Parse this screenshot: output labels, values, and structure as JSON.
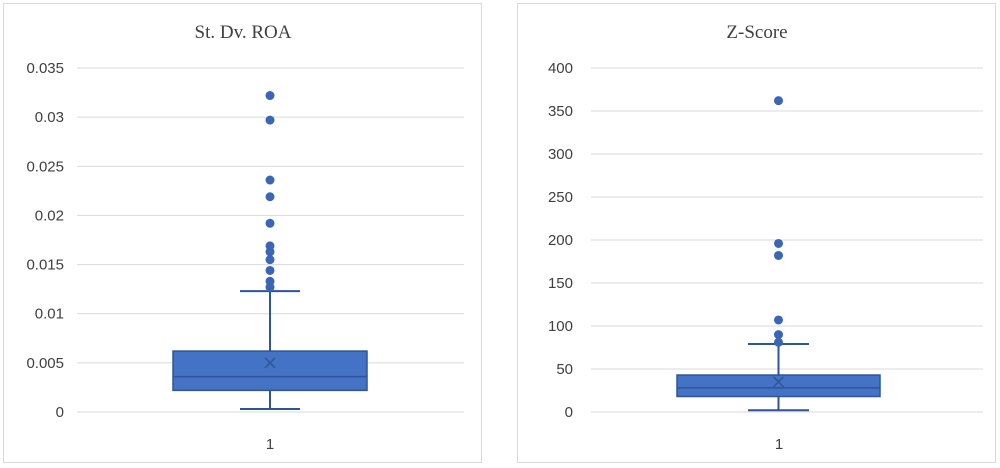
{
  "chart_data": [
    {
      "type": "boxplot",
      "title": "St. Dv. ROA",
      "categories": [
        "1"
      ],
      "ylim": [
        0,
        0.035
      ],
      "yticks": [
        "0",
        "0.005",
        "0.01",
        "0.015",
        "0.02",
        "0.025",
        "0.03",
        "0.035"
      ],
      "grid": true,
      "box": {
        "min": 0.0003,
        "q1": 0.0022,
        "median": 0.0036,
        "q3": 0.0062,
        "max": 0.0123,
        "mean": 0.005
      },
      "outliers": [
        0.0127,
        0.0133,
        0.0144,
        0.0155,
        0.0163,
        0.0169,
        0.0192,
        0.0219,
        0.0236,
        0.0297,
        0.0322
      ],
      "colors": {
        "fill": "#4472c4",
        "edge": "#2f5597",
        "point": "#3a66b5"
      }
    },
    {
      "type": "boxplot",
      "title": "Z-Score",
      "categories": [
        "1"
      ],
      "ylim": [
        0,
        400
      ],
      "yticks": [
        "0",
        "50",
        "100",
        "150",
        "200",
        "250",
        "300",
        "350",
        "400"
      ],
      "grid": true,
      "box": {
        "min": 2,
        "q1": 18,
        "median": 28,
        "q3": 43,
        "max": 79,
        "mean": 35
      },
      "outliers": [
        81,
        90,
        107,
        182,
        196,
        362
      ],
      "colors": {
        "fill": "#4472c4",
        "edge": "#2f5597",
        "point": "#3a66b5"
      }
    }
  ]
}
